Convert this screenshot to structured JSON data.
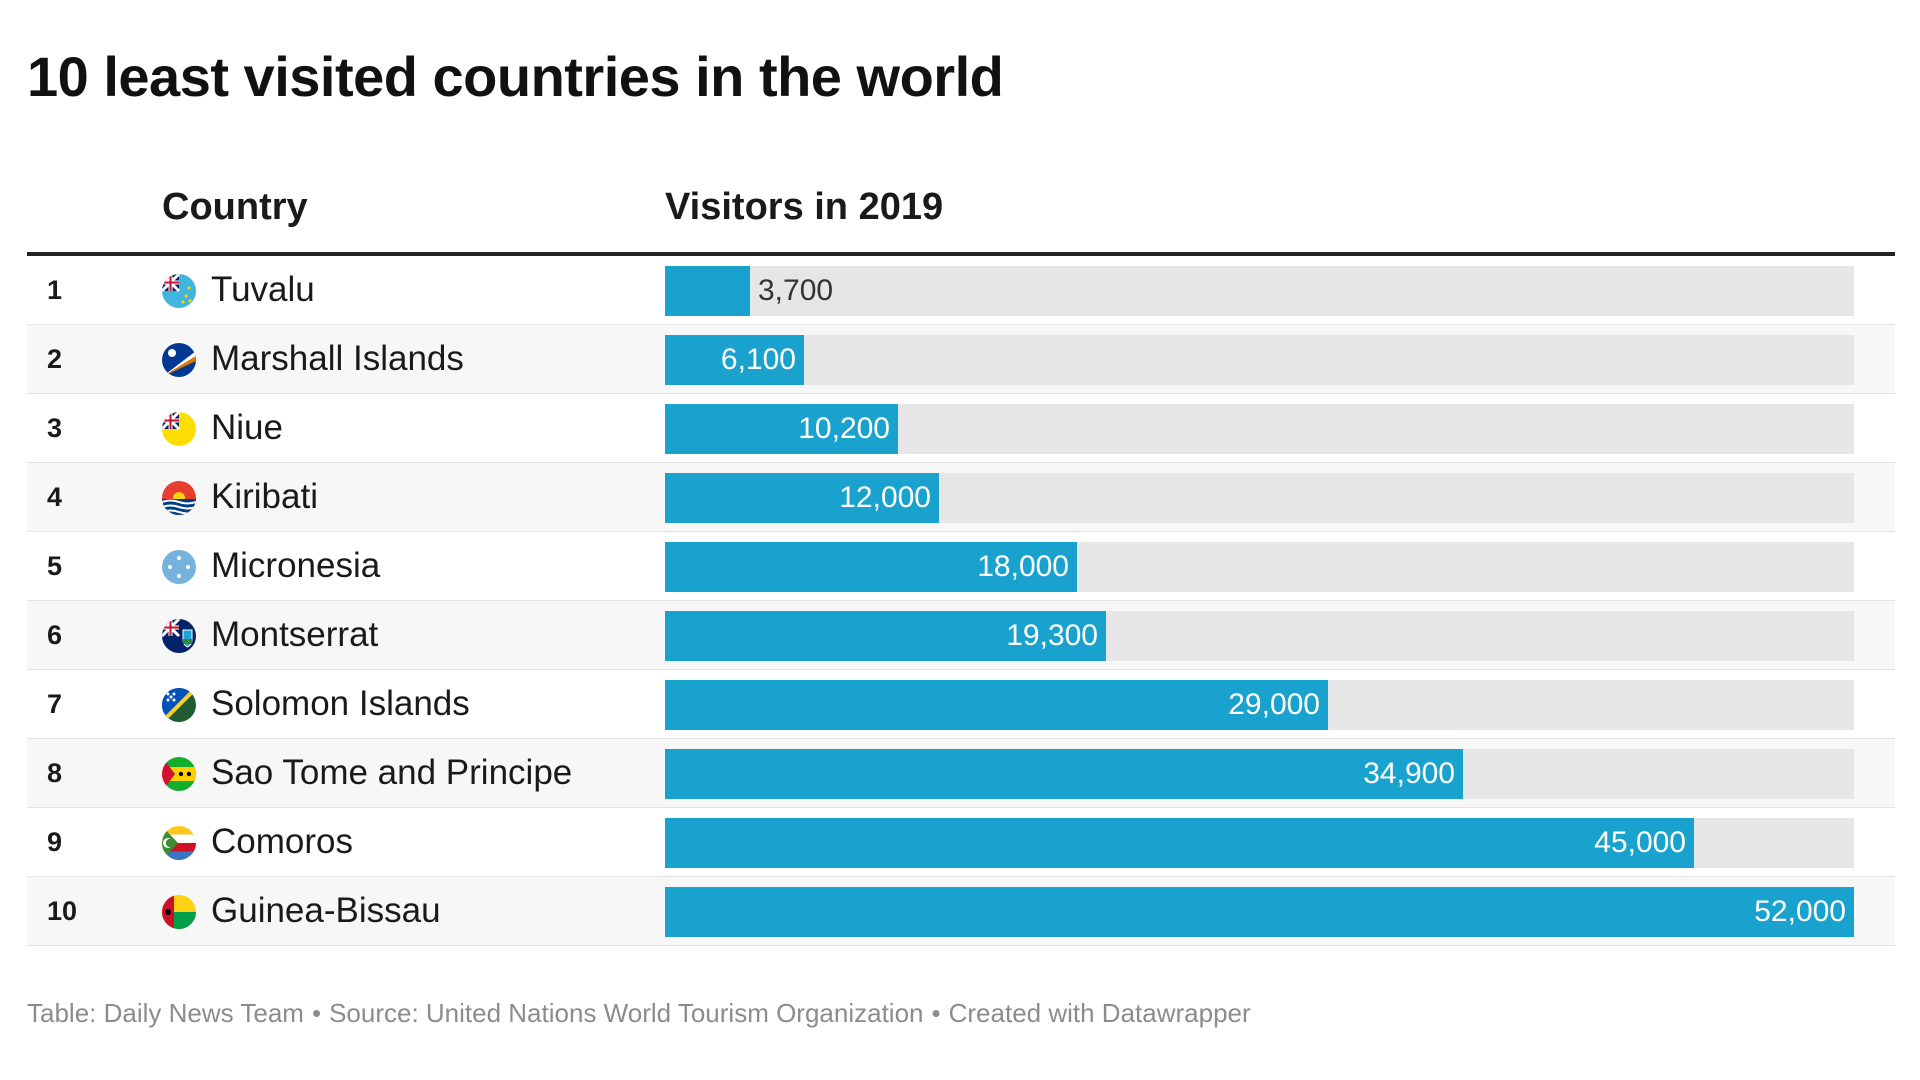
{
  "title": "10 least visited countries in the world",
  "header": {
    "country": "Country",
    "visitors": "Visitors in 2019"
  },
  "footer": {
    "table": "Table: Daily News Team",
    "separator": "•",
    "source": "Source: United Nations World Tourism Organization",
    "created": "Created with Datawrapper"
  },
  "colors": {
    "bar": "#1aa2cf",
    "track": "#e6e6e6"
  },
  "chart_data": {
    "type": "bar",
    "orientation": "horizontal",
    "xlim": [
      0,
      52000
    ],
    "categories": [
      "Tuvalu",
      "Marshall Islands",
      "Niue",
      "Kiribati",
      "Micronesia",
      "Montserrat",
      "Solomon Islands",
      "Sao Tome and Principe",
      "Comoros",
      "Guinea-Bissau"
    ],
    "values": [
      3700,
      6100,
      10200,
      12000,
      18000,
      19300,
      29000,
      34900,
      45000,
      52000
    ],
    "rows": [
      {
        "rank": "1",
        "country": "Tuvalu",
        "flag": "tuvalu-flag-icon",
        "value": 3700,
        "label": "3,700"
      },
      {
        "rank": "2",
        "country": "Marshall Islands",
        "flag": "marshall-islands-flag-icon",
        "value": 6100,
        "label": "6,100"
      },
      {
        "rank": "3",
        "country": "Niue",
        "flag": "niue-flag-icon",
        "value": 10200,
        "label": "10,200"
      },
      {
        "rank": "4",
        "country": "Kiribati",
        "flag": "kiribati-flag-icon",
        "value": 12000,
        "label": "12,000"
      },
      {
        "rank": "5",
        "country": "Micronesia",
        "flag": "micronesia-flag-icon",
        "value": 18000,
        "label": "18,000"
      },
      {
        "rank": "6",
        "country": "Montserrat",
        "flag": "montserrat-flag-icon",
        "value": 19300,
        "label": "19,300"
      },
      {
        "rank": "7",
        "country": "Solomon Islands",
        "flag": "solomon-islands-flag-icon",
        "value": 29000,
        "label": "29,000"
      },
      {
        "rank": "8",
        "country": "Sao Tome and Principe",
        "flag": "sao-tome-and-principe-flag-icon",
        "value": 34900,
        "label": "34,900"
      },
      {
        "rank": "9",
        "country": "Comoros",
        "flag": "comoros-flag-icon",
        "value": 45000,
        "label": "45,000"
      },
      {
        "rank": "10",
        "country": "Guinea-Bissau",
        "flag": "guinea-bissau-flag-icon",
        "value": 52000,
        "label": "52,000"
      }
    ]
  }
}
